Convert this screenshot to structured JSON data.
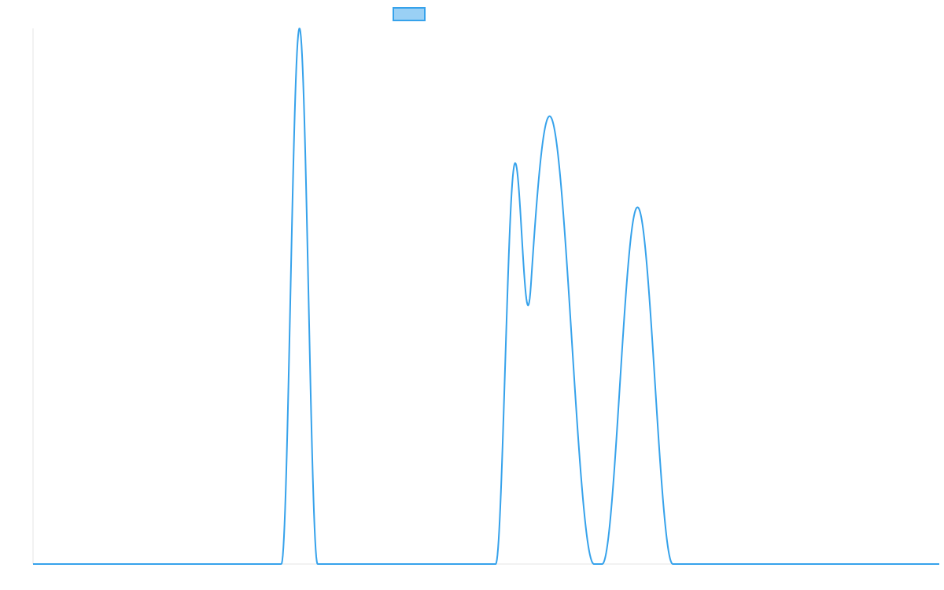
{
  "chart_data": {
    "type": "line",
    "title": "",
    "xlabel": "",
    "ylabel": "",
    "legend": {
      "placement": "top-center",
      "entries": [
        {
          "name": "",
          "swatch_fill": "#9ad0f5",
          "swatch_stroke": "#36a2eb"
        }
      ]
    },
    "grid": false,
    "xlim": [
      0,
      100
    ],
    "ylim": [
      0,
      1
    ],
    "series": [
      {
        "name": "",
        "color": "#36a2eb",
        "peaks": [
          {
            "center": 29.4,
            "half_width": 2.0,
            "height": 1.0
          },
          {
            "center": 53.0,
            "half_width": 1.95,
            "height": 0.666
          },
          {
            "center": 57.0,
            "half_width": 4.9,
            "height": 0.836
          },
          {
            "center": 66.7,
            "half_width": 3.9,
            "height": 0.666
          }
        ]
      }
    ]
  }
}
